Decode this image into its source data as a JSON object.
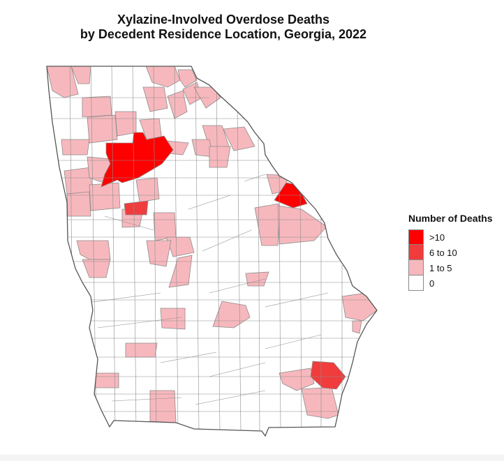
{
  "title_line1": "Xylazine-Involved Overdose Deaths",
  "title_line2": "by Decedent Residence Location, Georgia, 2022",
  "legend": {
    "title": "Number of Deaths",
    "items": [
      {
        "label": ">10",
        "color": "#ff0000"
      },
      {
        "label": "6 to 10",
        "color": "#f03c3c"
      },
      {
        "label": "1 to 5",
        "color": "#f7b8bd"
      },
      {
        "label": "0",
        "color": "#ffffff"
      }
    ]
  },
  "map": {
    "state": "Georgia",
    "year": "2022",
    "county_border_color": "#8c8c8c",
    "counties_by_category": {
      ">10": 2,
      "6 to 10": 2,
      "1 to 5": 40,
      "0": "remaining"
    }
  }
}
